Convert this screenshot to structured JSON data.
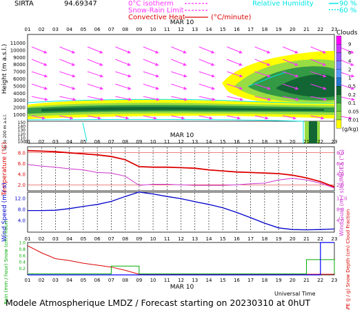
{
  "header": {
    "site": "SIRTA",
    "code": "94.69347",
    "legend_isotherm": "0°C isotherm",
    "legend_snowrain": "Snow-Rain Limit",
    "legend_convective": "Convective Heat",
    "legend_convective_unit": "(°C/minute)",
    "legend_rh": "Relative Humidity",
    "legend_rh_90": "90 %",
    "legend_rh_60": "60 %"
  },
  "hours": [
    "01",
    "02",
    "03",
    "04",
    "05",
    "06",
    "07",
    "08",
    "09",
    "10",
    "11",
    "12",
    "13",
    "14",
    "15",
    "16",
    "17",
    "18",
    "19",
    "20",
    "21",
    "22",
    "23"
  ],
  "date_label": "MAR 10",
  "footer": "Modele Atmospherique LMDZ / Forecast starting on 20230310 at 0hUT",
  "xaxis_label": "Universal Time",
  "colors": {
    "temp": "#dd0000",
    "humidex": "#cc33cc",
    "wind": "#0000cc",
    "gust": "#cc33cc",
    "rain": "#00aa00",
    "snow": "#0000ff",
    "cape": "#dd0000",
    "arrows": "#ff33ff",
    "rh": "#00e5e5"
  },
  "chart_data": [
    {
      "type": "heatmap",
      "title": "Clouds",
      "ylabel": "Height (m a.s.l.)",
      "ylabel2": "Up to 200 m a.s.l.",
      "yticks_upper": [
        "11000",
        "10000",
        "9000",
        "8000",
        "7000",
        "6000",
        "5000",
        "4000",
        "3000",
        "2000",
        "1000"
      ],
      "yticks_lower": [
        "150",
        "140",
        "130",
        "120",
        "110",
        "100"
      ],
      "colorbar_title": "Clouds",
      "colorbar_unit": "(g/kg)",
      "colorbar_levels": [
        "9",
        "6",
        "4",
        "2",
        "1",
        "0.5",
        "0.2",
        "0.1",
        "0.05",
        "0.01"
      ],
      "colorbar_colors": [
        "#ff00ff",
        "#cc33ff",
        "#9955ff",
        "#7788ff",
        "#5599ff",
        "#2277cc",
        "#116633",
        "#339944",
        "#66cc44",
        "#99dd44",
        "#ffff00"
      ]
    },
    {
      "type": "line",
      "ylabel": "Temperature (°C)",
      "ylabel2": "HUMIDEX (°C)",
      "yticks": [
        "8.0",
        "6.0",
        "4.0",
        "2.0"
      ],
      "ylim": [
        1,
        9
      ],
      "x": [
        1,
        2,
        3,
        4,
        5,
        6,
        7,
        8,
        9,
        10,
        11,
        12,
        13,
        14,
        15,
        16,
        17,
        18,
        19,
        20,
        21,
        22,
        23
      ],
      "series": [
        {
          "name": "Temperature",
          "values": [
            8.4,
            8.3,
            8.2,
            8.0,
            7.8,
            7.6,
            7.3,
            6.7,
            5.4,
            5.3,
            5.3,
            5.2,
            5.1,
            4.8,
            4.6,
            4.4,
            4.3,
            4.2,
            4.1,
            3.8,
            3.3,
            2.6,
            1.6
          ]
        },
        {
          "name": "HUMIDEX",
          "values": [
            5.8,
            5.5,
            5.3,
            5.0,
            4.8,
            4.3,
            4.2,
            3.6,
            1.9,
            2.1,
            2.1,
            2.0,
            1.9,
            1.9,
            1.9,
            2.0,
            2.2,
            2.3,
            2.9,
            3.2,
            2.9,
            2.3,
            1.4
          ]
        }
      ]
    },
    {
      "type": "line",
      "ylabel": "Wind Speed (m / s)",
      "ylabel2": "Wind Gust (m / s)",
      "yticks": [
        "12.0",
        "8.0",
        "4.0"
      ],
      "ylim": [
        0,
        14
      ],
      "x": [
        1,
        2,
        3,
        4,
        5,
        6,
        7,
        8,
        9,
        10,
        11,
        12,
        13,
        14,
        15,
        16,
        17,
        18,
        19,
        20,
        21,
        22,
        23
      ],
      "series": [
        {
          "name": "Wind Speed",
          "values": [
            7.6,
            7.6,
            7.7,
            8.3,
            9.1,
            9.8,
            10.9,
            12.7,
            14.3,
            13.6,
            12.7,
            11.9,
            10.8,
            9.8,
            8.6,
            6.9,
            5.0,
            3.0,
            1.3,
            0.7,
            0.6,
            0.7,
            0.9
          ]
        }
      ]
    },
    {
      "type": "line",
      "ylabel": "Rain (mm / hour) Snow (cm / hour)",
      "ylabel2": "CAPE (J / g) Snow Depth (cm) Cloud Fraction",
      "yticks": [
        "1.0",
        "0.8",
        "0.6",
        "0.4",
        "0.2"
      ],
      "ylim": [
        0,
        1
      ],
      "x": [
        1,
        2,
        3,
        4,
        5,
        6,
        7,
        8,
        9,
        10,
        11,
        12,
        13,
        14,
        15,
        16,
        17,
        18,
        19,
        20,
        21,
        22,
        23
      ],
      "series": [
        {
          "name": "CAPE",
          "values": [
            0.9,
            0.68,
            0.5,
            0.44,
            0.36,
            0.3,
            0.24,
            0.14,
            0.02,
            0.02,
            0.02,
            0.02,
            0.02,
            0.02,
            0.02,
            0.02,
            0.02,
            0.02,
            0.02,
            0.02,
            0.02,
            0.02,
            0.02
          ]
        },
        {
          "name": "Rain",
          "values": [
            0.03,
            0.03,
            0.03,
            0.03,
            0.03,
            0.03,
            0.27,
            0.27,
            0.03,
            0.03,
            0.03,
            0.03,
            0.03,
            0.03,
            0.03,
            0.03,
            0.03,
            0.03,
            0.03,
            0.03,
            0.47,
            0.47,
            0.03
          ]
        },
        {
          "name": "Snow",
          "values": [
            0,
            0,
            0,
            0,
            0,
            0,
            0,
            0,
            0,
            0,
            0,
            0,
            0,
            0,
            0,
            0,
            0,
            0,
            0,
            0,
            0,
            1.0,
            1.0
          ]
        }
      ]
    }
  ]
}
